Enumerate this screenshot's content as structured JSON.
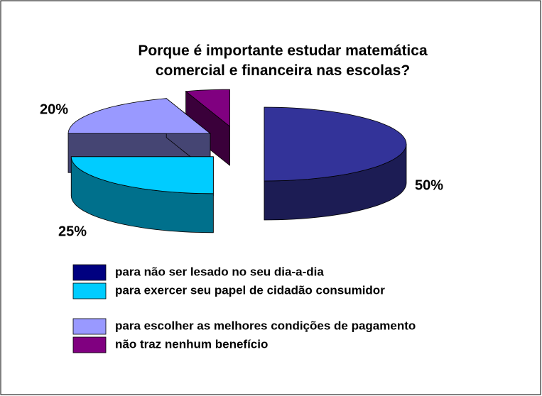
{
  "chart_data": {
    "type": "pie3d",
    "title": "Porque é importante estudar matemática comercial e financeira nas escolas?",
    "categories": [
      "para não ser lesado no seu dia-a-dia",
      "para exercer seu papel de cidadão consumidor",
      "para escolher as melhores condições de pagamento",
      "não traz nenhum benefício"
    ],
    "values": [
      50,
      25,
      20,
      5
    ],
    "value_labels": [
      "50%",
      "25%",
      "20%",
      null
    ],
    "colors": [
      "#333399",
      "#00ccff",
      "#9999ff",
      "#800080"
    ],
    "legend_colors": [
      "#000080",
      "#00ccff",
      "#9999ff",
      "#800080"
    ]
  }
}
